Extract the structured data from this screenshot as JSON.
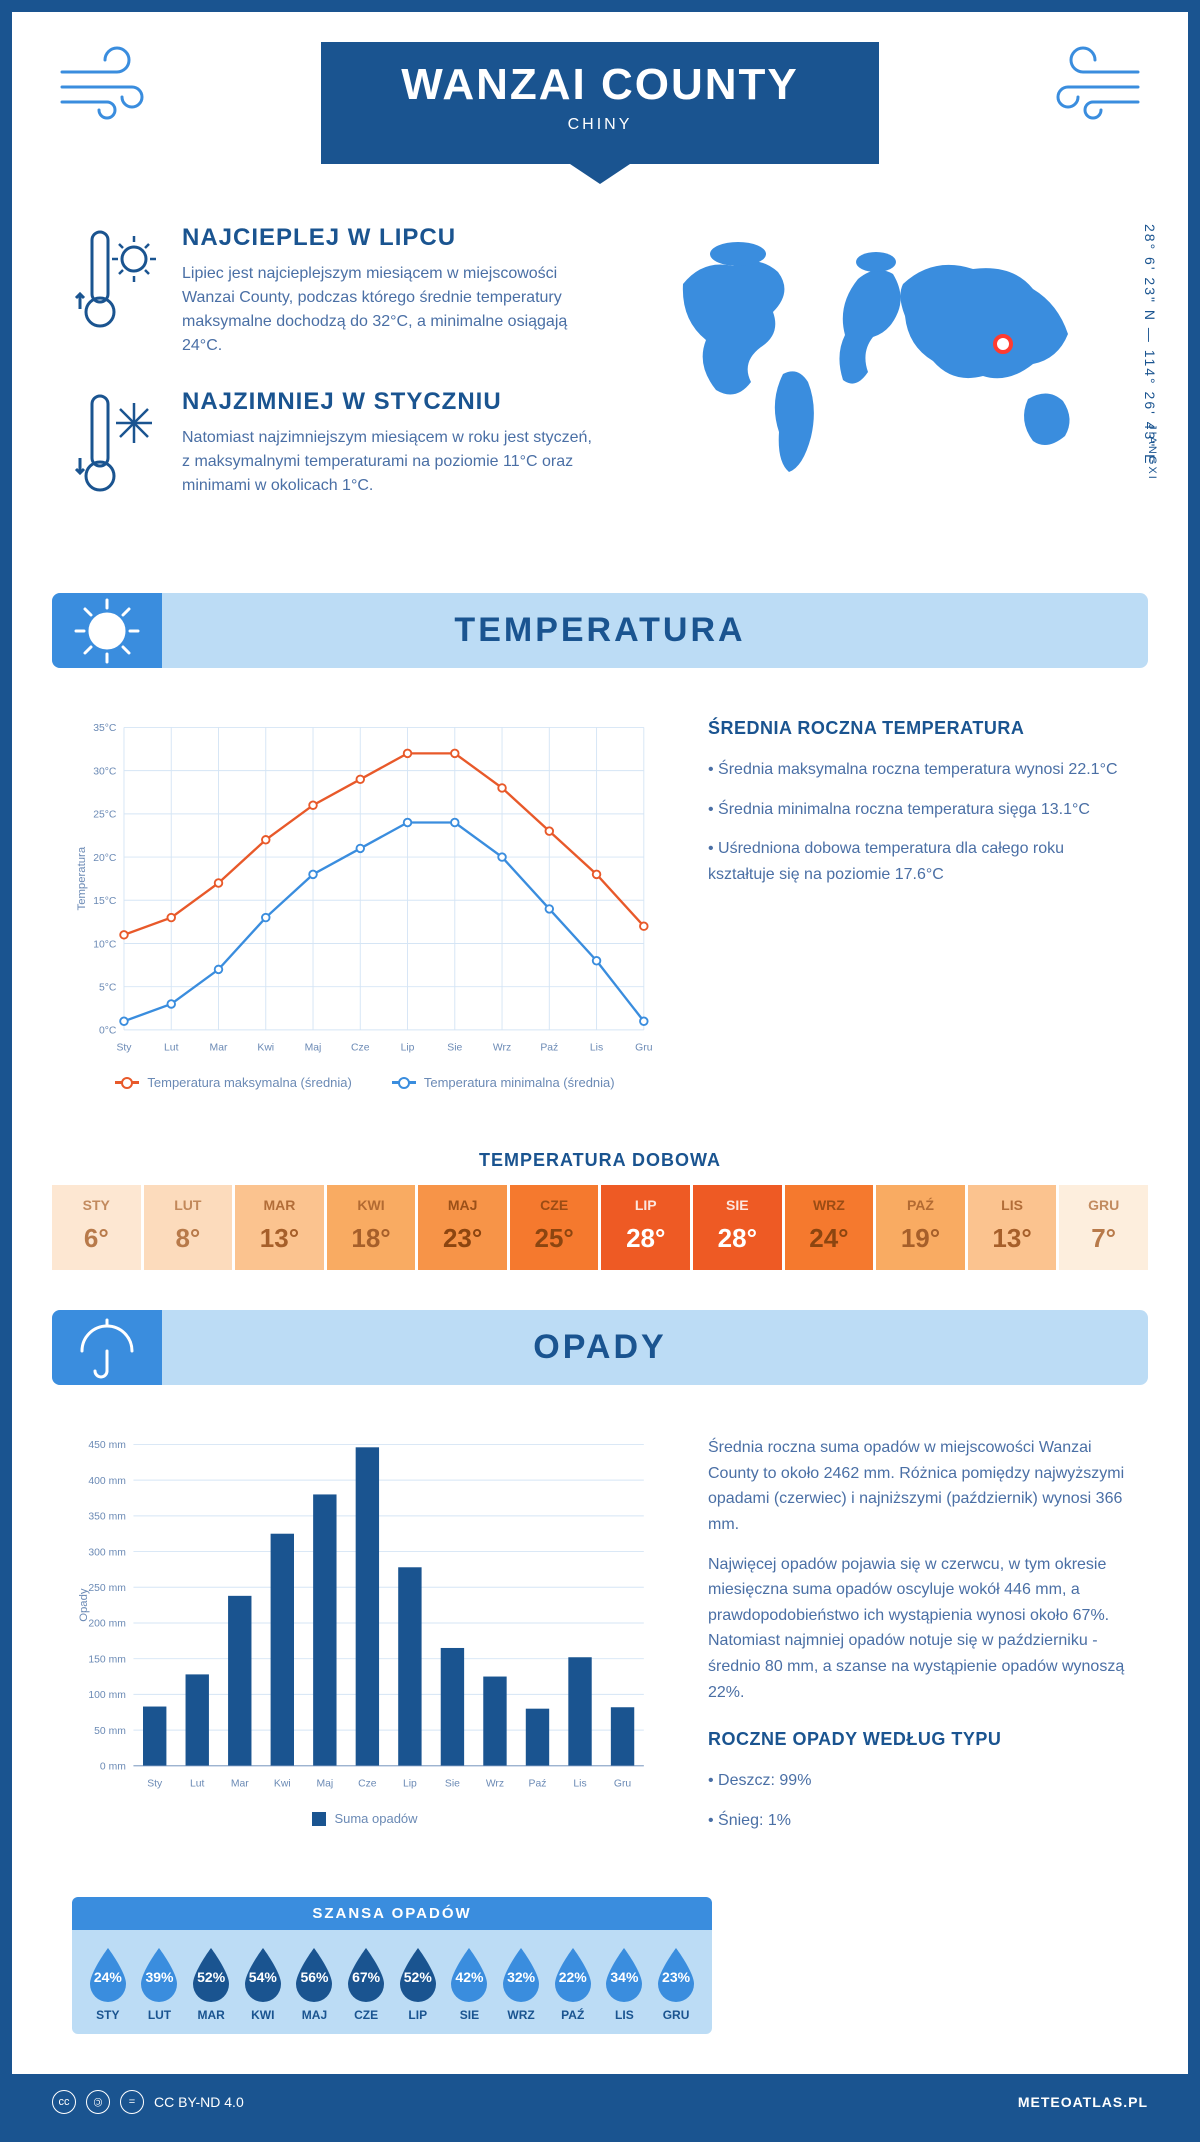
{
  "header": {
    "title": "WANZAI COUNTY",
    "subtitle": "CHINY"
  },
  "coords": "28° 6' 23\" N — 114° 26' 43\" E",
  "region": "JIANGXI",
  "warmest": {
    "heading": "NAJCIEPLEJ W LIPCU",
    "text": "Lipiec jest najcieplejszym miesiącem w miejscowości Wanzai County, podczas którego średnie temperatury maksymalne dochodzą do 32°C, a minimalne osiągają 24°C."
  },
  "coldest": {
    "heading": "NAJZIMNIEJ W STYCZNIU",
    "text": "Natomiast najzimniejszym miesiącem w roku jest styczeń, z maksymalnymi temperaturami na poziomie 11°C oraz minimami w okolicach 1°C."
  },
  "section_temp": "TEMPERATURA",
  "section_precip": "OPADY",
  "temp_chart": {
    "type": "line",
    "months": [
      "Sty",
      "Lut",
      "Mar",
      "Kwi",
      "Maj",
      "Cze",
      "Lip",
      "Sie",
      "Wrz",
      "Paź",
      "Lis",
      "Gru"
    ],
    "max_series": [
      11,
      13,
      17,
      22,
      26,
      29,
      32,
      32,
      28,
      23,
      18,
      12
    ],
    "min_series": [
      1,
      3,
      7,
      13,
      18,
      21,
      24,
      24,
      20,
      14,
      8,
      1
    ],
    "max_color": "#e8592a",
    "min_color": "#3a8dde",
    "y_min": 0,
    "y_max": 35,
    "y_step": 5,
    "y_unit": "°C",
    "y_axis_title": "Temperatura",
    "legend_max": "Temperatura maksymalna (średnia)",
    "legend_min": "Temperatura minimalna (średnia)",
    "grid_color": "#d5e5f5",
    "background": "#ffffff"
  },
  "temp_side": {
    "heading": "ŚREDNIA ROCZNA TEMPERATURA",
    "bullets": [
      "• Średnia maksymalna roczna temperatura wynosi 22.1°C",
      "• Średnia minimalna roczna temperatura sięga 13.1°C",
      "• Uśredniona dobowa temperatura dla całego roku kształtuje się na poziomie 17.6°C"
    ]
  },
  "daily_temp": {
    "title": "TEMPERATURA DOBOWA",
    "months": [
      "STY",
      "LUT",
      "MAR",
      "KWI",
      "MAJ",
      "CZE",
      "LIP",
      "SIE",
      "WRZ",
      "PAŹ",
      "LIS",
      "GRU"
    ],
    "values": [
      "6°",
      "8°",
      "13°",
      "18°",
      "23°",
      "25°",
      "28°",
      "28°",
      "24°",
      "19°",
      "13°",
      "7°"
    ],
    "bg_colors": [
      "#fde7d2",
      "#fcdbbc",
      "#fbc38f",
      "#f9ab62",
      "#f79448",
      "#f5792e",
      "#ee5a24",
      "#ee5a24",
      "#f5792e",
      "#f9ab62",
      "#fbc38f",
      "#fdeedd"
    ],
    "text_colors": [
      "#b87a4a",
      "#b87a4a",
      "#a65f2a",
      "#a65f2a",
      "#8c4510",
      "#8c4510",
      "#ffffff",
      "#ffffff",
      "#8c4510",
      "#a65f2a",
      "#a65f2a",
      "#b87a4a"
    ]
  },
  "precip_chart": {
    "type": "bar",
    "months": [
      "Sty",
      "Lut",
      "Mar",
      "Kwi",
      "Maj",
      "Cze",
      "Lip",
      "Sie",
      "Wrz",
      "Paź",
      "Lis",
      "Gru"
    ],
    "values": [
      83,
      128,
      238,
      325,
      380,
      446,
      278,
      165,
      125,
      80,
      152,
      82
    ],
    "bar_color": "#1a5490",
    "y_min": 0,
    "y_max": 450,
    "y_step": 50,
    "y_unit": " mm",
    "y_axis_title": "Opady",
    "legend": "Suma opadów",
    "grid_color": "#d5e5f5"
  },
  "precip_side": {
    "para1": "Średnia roczna suma opadów w miejscowości Wanzai County to około 2462 mm. Różnica pomiędzy najwyższymi opadami (czerwiec) i najniższymi (październik) wynosi 366 mm.",
    "para2": "Najwięcej opadów pojawia się w czerwcu, w tym okresie miesięczna suma opadów oscyluje wokół 446 mm, a prawdopodobieństwo ich wystąpienia wynosi około 67%. Natomiast najmniej opadów notuje się w październiku - średnio 80 mm, a szanse na wystąpienie opadów wynoszą 22%.",
    "type_heading": "ROCZNE OPADY WEDŁUG TYPU",
    "type_bullets": [
      "• Deszcz: 99%",
      "• Śnieg: 1%"
    ]
  },
  "rain_chance": {
    "title": "SZANSA OPADÓW",
    "months": [
      "STY",
      "LUT",
      "MAR",
      "KWI",
      "MAJ",
      "CZE",
      "LIP",
      "SIE",
      "WRZ",
      "PAŹ",
      "LIS",
      "GRU"
    ],
    "pct": [
      "24%",
      "39%",
      "52%",
      "54%",
      "56%",
      "67%",
      "52%",
      "42%",
      "32%",
      "22%",
      "34%",
      "23%"
    ],
    "values": [
      24,
      39,
      52,
      54,
      56,
      67,
      52,
      42,
      32,
      22,
      34,
      23
    ],
    "light_color": "#3a8dde",
    "dark_color": "#1a5490"
  },
  "footer": {
    "license": "CC BY-ND 4.0",
    "site": "METEOATLAS.PL"
  },
  "map_marker": {
    "stroke": "#ff3b30",
    "fill": "#ffffff"
  }
}
